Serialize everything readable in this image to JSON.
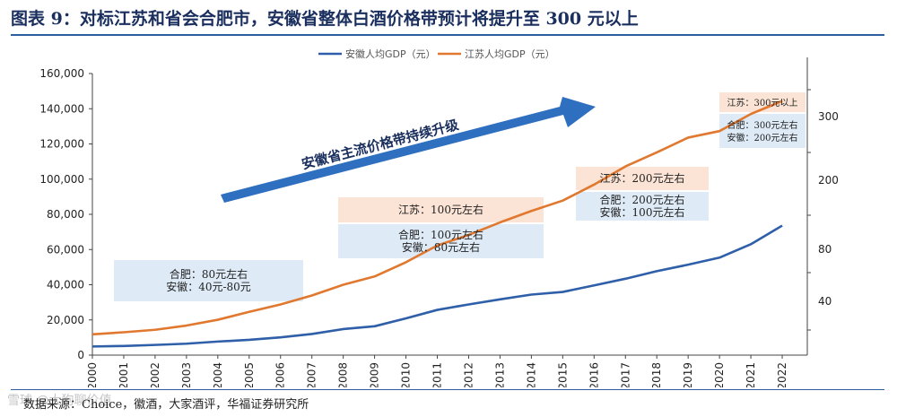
{
  "title": "图表 9：对标江苏和省会合肥市，安徽省整体白酒价格带预计将提升至 300 元以上",
  "source": "数据来源：Choice，徽酒，大家酒评，华福证券研究所",
  "watermark": "雪球 @大狗聊价值",
  "colors": {
    "anhui": "#2e5fa8",
    "jiangsu": "#e0782f",
    "arrow": "#2f6fbf",
    "rule": "#2d5f9e",
    "box_orange": "#fbe4d5",
    "box_blue": "#deebf7"
  },
  "chart_data": {
    "type": "line",
    "categories": [
      "2000",
      "2001",
      "2002",
      "2003",
      "2004",
      "2005",
      "2006",
      "2007",
      "2008",
      "2009",
      "2010",
      "2011",
      "2012",
      "2013",
      "2014",
      "2015",
      "2016",
      "2017",
      "2018",
      "2019",
      "2020",
      "2021",
      "2022"
    ],
    "series": [
      {
        "name": "安徽人均GDP（元）",
        "values": [
          4900,
          5200,
          5800,
          6500,
          7700,
          8700,
          10100,
          12000,
          14800,
          16400,
          20900,
          25700,
          28800,
          31700,
          34400,
          35900,
          39600,
          43400,
          47700,
          51400,
          55400,
          63000,
          73600
        ]
      },
      {
        "name": "江苏人均GDP（元）",
        "values": [
          11800,
          13000,
          14400,
          16800,
          20100,
          24600,
          28800,
          33900,
          40000,
          44700,
          52800,
          62300,
          68300,
          75400,
          81900,
          87800,
          96900,
          107200,
          115200,
          123600,
          127300,
          137000,
          144400
        ]
      }
    ],
    "ylim": [
      0,
      160000
    ],
    "yticks": [
      "0",
      "20,000",
      "40,000",
      "60,000",
      "80,000",
      "100,000",
      "120,000",
      "140,000",
      "160,000"
    ],
    "y2ticks": [
      "40",
      "80",
      "200",
      "300"
    ],
    "legend": [
      "安徽人均GDP（元）",
      "江苏人均GDP（元）"
    ],
    "legend_position": "top-center",
    "arrow_label": "安徽省主流价格带持续升级",
    "annotations": [
      {
        "lines": [
          "合肥：80元左右",
          "安徽：40元-80元"
        ],
        "color": "blue"
      },
      {
        "lines": [
          "江苏：100元左右"
        ],
        "color": "orange"
      },
      {
        "lines": [
          "合肥：100元左右",
          "安徽：80元左右"
        ],
        "color": "blue"
      },
      {
        "lines": [
          "江苏：200元左右"
        ],
        "color": "orange"
      },
      {
        "lines": [
          "合肥：200元左右",
          "安徽：100元左右"
        ],
        "color": "blue"
      },
      {
        "lines": [
          "江苏：300元以上"
        ],
        "color": "orange"
      },
      {
        "lines": [
          "合肥：300元左右",
          "安徽：200元左右"
        ],
        "color": "blue"
      }
    ]
  }
}
